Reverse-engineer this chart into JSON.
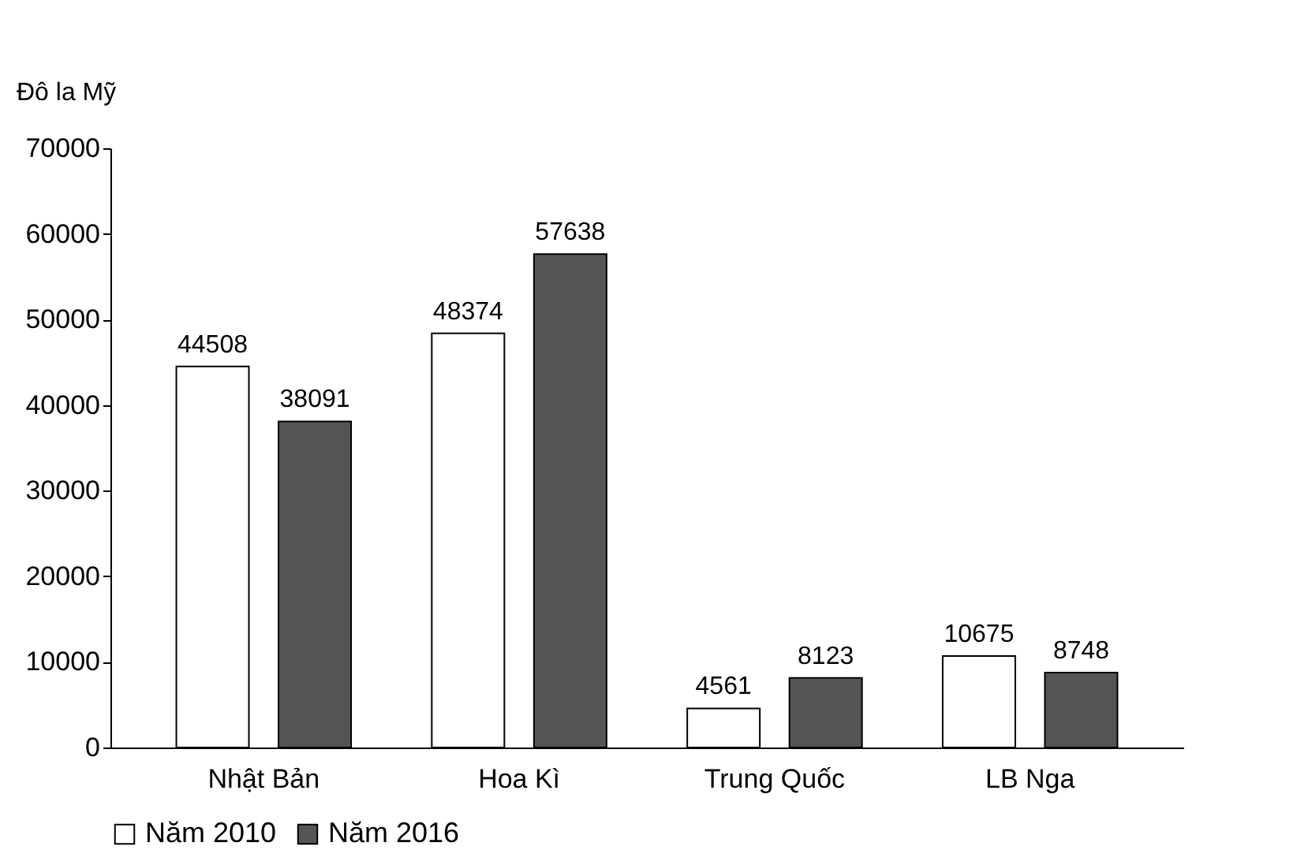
{
  "chart_data": {
    "type": "bar",
    "ylabel": "Đô la Mỹ",
    "categories": [
      "Nhật Bản",
      "Hoa Kì",
      "Trung Quốc",
      "LB Nga"
    ],
    "series": [
      {
        "name": "Năm 2010",
        "color": "#ffffff",
        "values": [
          44508,
          48374,
          4561,
          10675
        ]
      },
      {
        "name": "Năm 2016",
        "color": "#555555",
        "values": [
          38091,
          57638,
          8123,
          8748
        ]
      }
    ],
    "ylim": [
      0,
      70000
    ],
    "yticks": [
      0,
      10000,
      20000,
      30000,
      40000,
      50000,
      60000,
      70000
    ],
    "grid": false,
    "legend": "bottom",
    "data_labels": true
  }
}
